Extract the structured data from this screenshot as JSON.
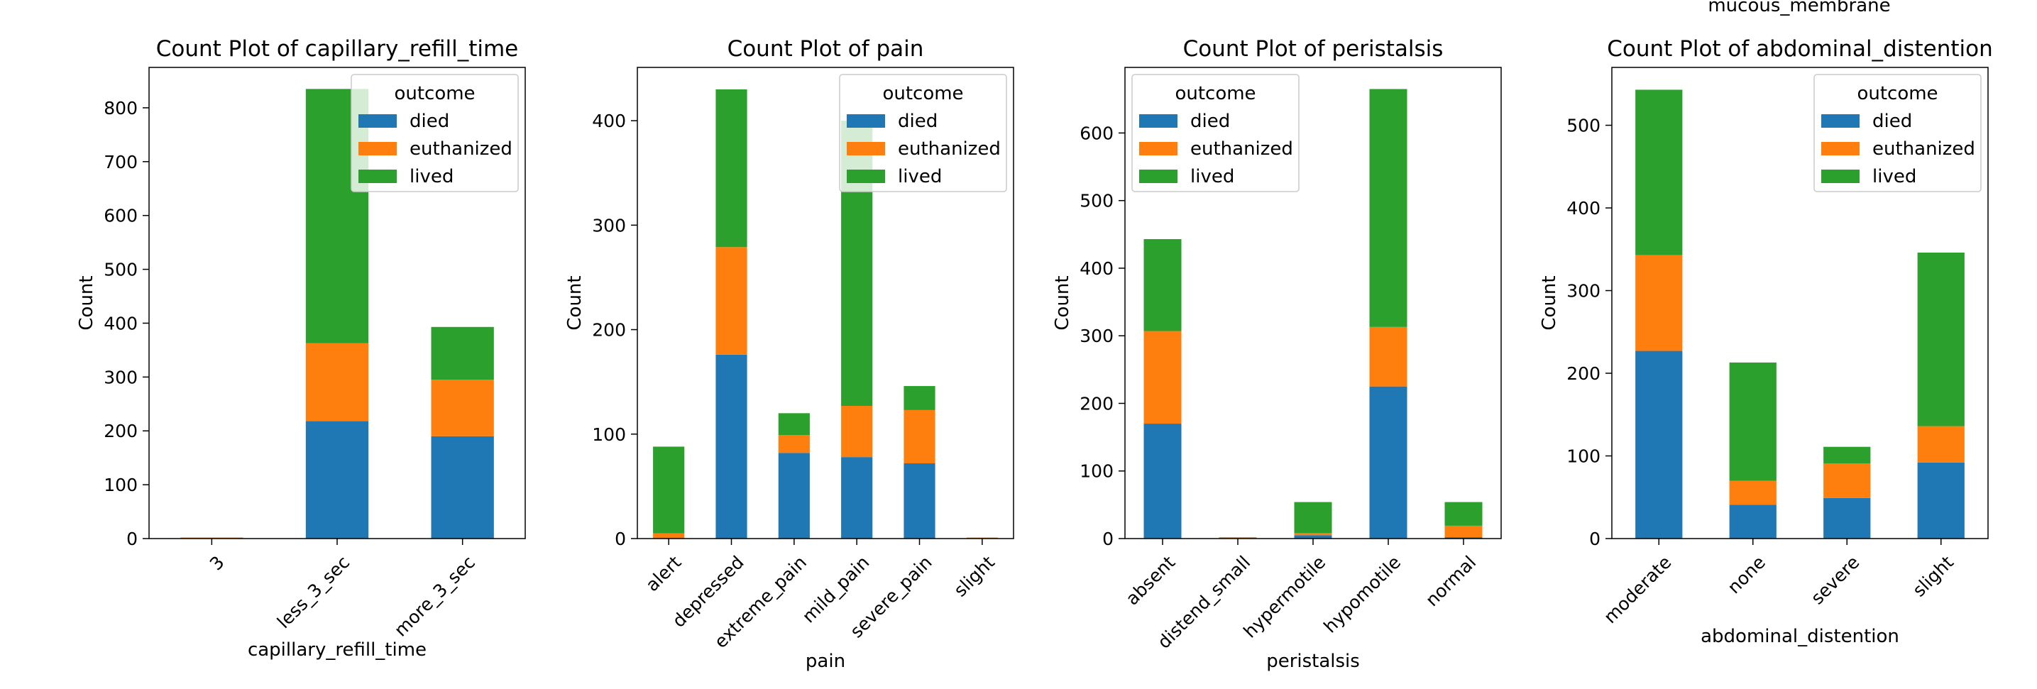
{
  "figure": {
    "top_label": "mucous_membrane"
  },
  "legend": {
    "title": "outcome",
    "entries": [
      "died",
      "euthanized",
      "lived"
    ]
  },
  "colors": {
    "died": "#1f77b4",
    "euthanized": "#ff7f0e",
    "lived": "#2ca02c"
  },
  "chart_data": [
    {
      "type": "bar",
      "stacked": true,
      "title": "Count Plot of capillary_refill_time",
      "xlabel": "capillary_refill_time",
      "ylabel": "Count",
      "ylim": [
        0,
        875
      ],
      "yticks": [
        0,
        100,
        200,
        300,
        400,
        500,
        600,
        700,
        800
      ],
      "categories": [
        "3",
        "less_3_sec",
        "more_3_sec"
      ],
      "series": [
        {
          "name": "died",
          "values": [
            0,
            218,
            190
          ]
        },
        {
          "name": "euthanized",
          "values": [
            2,
            145,
            105
          ]
        },
        {
          "name": "lived",
          "values": [
            0,
            472,
            98
          ]
        }
      ],
      "legend_position": "upper right"
    },
    {
      "type": "bar",
      "stacked": true,
      "title": "Count Plot of pain",
      "xlabel": "pain",
      "ylabel": "Count",
      "ylim": [
        0,
        451
      ],
      "yticks": [
        0,
        100,
        200,
        300,
        400
      ],
      "categories": [
        "alert",
        "depressed",
        "extreme_pain",
        "mild_pain",
        "severe_pain",
        "slight"
      ],
      "series": [
        {
          "name": "died",
          "values": [
            0,
            176,
            82,
            78,
            72,
            0
          ]
        },
        {
          "name": "euthanized",
          "values": [
            5,
            103,
            17,
            49,
            51,
            1
          ]
        },
        {
          "name": "lived",
          "values": [
            83,
            151,
            21,
            273,
            23,
            0
          ]
        }
      ],
      "legend_position": "upper right"
    },
    {
      "type": "bar",
      "stacked": true,
      "title": "Count Plot of peristalsis",
      "xlabel": "peristalsis",
      "ylabel": "Count",
      "ylim": [
        0,
        697
      ],
      "yticks": [
        0,
        100,
        200,
        300,
        400,
        500,
        600
      ],
      "categories": [
        "absent",
        "distend_small",
        "hypermotile",
        "hypomotile",
        "normal"
      ],
      "series": [
        {
          "name": "died",
          "values": [
            170,
            0,
            5,
            225,
            2
          ]
        },
        {
          "name": "euthanized",
          "values": [
            137,
            2,
            3,
            88,
            17
          ]
        },
        {
          "name": "lived",
          "values": [
            136,
            0,
            46,
            352,
            35
          ]
        }
      ],
      "legend_position": "upper left"
    },
    {
      "type": "bar",
      "stacked": true,
      "title": "Count Plot of abdominal_distention",
      "xlabel": "abdominal_distention",
      "ylabel": "Count",
      "ylim": [
        0,
        570
      ],
      "yticks": [
        0,
        100,
        200,
        300,
        400,
        500
      ],
      "categories": [
        "moderate",
        "none",
        "severe",
        "slight"
      ],
      "series": [
        {
          "name": "died",
          "values": [
            227,
            41,
            49,
            92
          ]
        },
        {
          "name": "euthanized",
          "values": [
            116,
            29,
            42,
            44
          ]
        },
        {
          "name": "lived",
          "values": [
            200,
            143,
            20,
            210
          ]
        }
      ],
      "legend_position": "upper right"
    }
  ]
}
